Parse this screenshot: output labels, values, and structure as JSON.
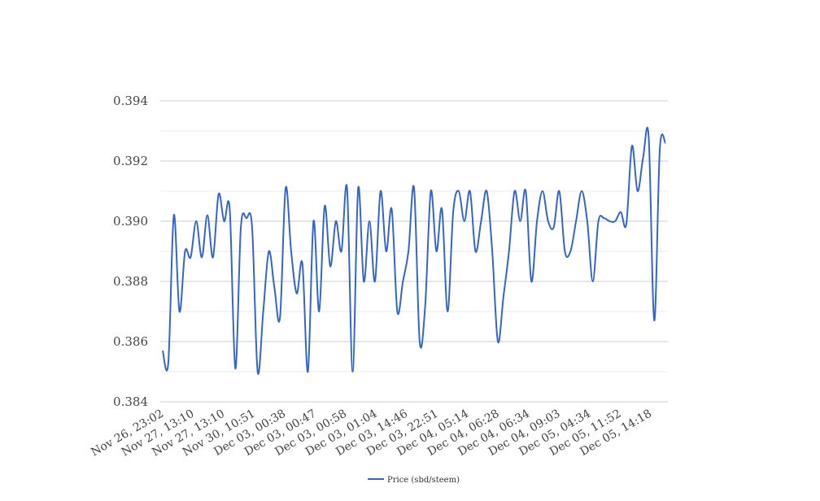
{
  "chart_data": {
    "type": "line",
    "title": "",
    "xlabel": "",
    "ylabel": "",
    "ylim": [
      0.384,
      0.394
    ],
    "y_ticks": [
      "0.384",
      "0.386",
      "0.388",
      "0.390",
      "0.392",
      "0.394"
    ],
    "grid": true,
    "legend_position": "bottom",
    "x_tick_labels": [
      "Nov 26, 23:02",
      "Nov 27, 13:10",
      "Nov 27, 13:10",
      "Nov 30, 10:51",
      "Dec 03, 00:38",
      "Dec 03, 00:47",
      "Dec 03, 00:58",
      "Dec 03, 01:04",
      "Dec 03, 14:46",
      "Dec 03, 22:51",
      "Dec 04, 05:14",
      "Dec 04, 06:28",
      "Dec 04, 06:34",
      "Dec 04, 09:03",
      "Dec 05, 04:34",
      "Dec 05, 11:52",
      "Dec 05, 14:18"
    ],
    "series": [
      {
        "name": "Price (sbd/steem)",
        "color": "#3366cc",
        "values": [
          0.3857,
          0.3853,
          0.3902,
          0.387,
          0.389,
          0.3888,
          0.39,
          0.3888,
          0.3902,
          0.3888,
          0.3909,
          0.39,
          0.3904,
          0.3851,
          0.3898,
          0.3901,
          0.3898,
          0.385,
          0.387,
          0.389,
          0.3878,
          0.3868,
          0.3911,
          0.389,
          0.3876,
          0.3886,
          0.385,
          0.39,
          0.387,
          0.3905,
          0.3885,
          0.39,
          0.389,
          0.3911,
          0.385,
          0.3911,
          0.388,
          0.39,
          0.388,
          0.391,
          0.389,
          0.3904,
          0.387,
          0.388,
          0.389,
          0.3911,
          0.386,
          0.3872,
          0.391,
          0.389,
          0.3904,
          0.387,
          0.3903,
          0.391,
          0.39,
          0.391,
          0.389,
          0.39,
          0.391,
          0.389,
          0.386,
          0.3875,
          0.389,
          0.391,
          0.39,
          0.391,
          0.388,
          0.39,
          0.391,
          0.39,
          0.3898,
          0.391,
          0.389,
          0.389,
          0.39,
          0.391,
          0.39,
          0.388,
          0.39,
          0.3901,
          0.39,
          0.39,
          0.3903,
          0.3899,
          0.3925,
          0.391,
          0.3921,
          0.3928,
          0.3867,
          0.3924,
          0.3926
        ]
      }
    ]
  }
}
